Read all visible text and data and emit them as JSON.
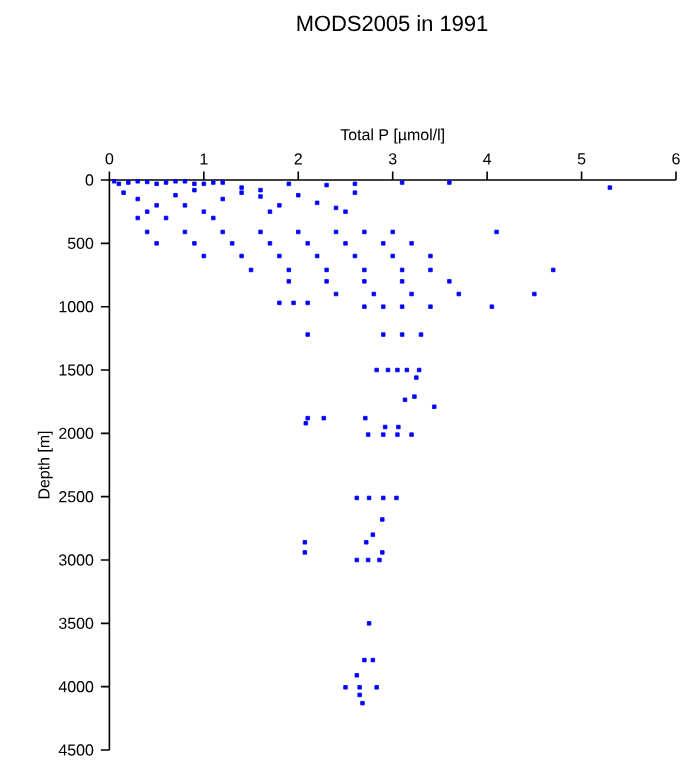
{
  "chart_data": {
    "type": "scatter",
    "title": "MODS2005 in 1991",
    "xlabel": "Total P [µmol/l]",
    "ylabel": "Depth [m]",
    "xlim": [
      0,
      6
    ],
    "xticks": [
      0,
      1,
      2,
      3,
      4,
      5,
      6
    ],
    "ylim": [
      4500,
      0
    ],
    "yticks": [
      0,
      500,
      1000,
      1500,
      2000,
      2500,
      3000,
      3500,
      4000,
      4500
    ],
    "grid": false,
    "marker": "square",
    "series": [
      {
        "color": "#0000ff",
        "x": [
          0.05,
          0.1,
          0.2,
          0.3,
          0.4,
          0.5,
          0.6,
          0.7,
          0.8,
          0.9,
          1.0,
          1.1,
          1.2,
          1.4,
          1.6,
          1.9,
          2.3,
          2.6,
          3.1,
          3.6,
          5.3,
          0.15,
          0.3,
          0.5,
          0.7,
          0.9,
          0.4,
          0.6,
          1.2,
          1.4,
          1.6,
          1.8,
          2.0,
          2.2,
          2.4,
          2.6,
          2.5,
          1.7,
          1.0,
          0.3,
          0.8,
          1.1,
          0.4,
          0.8,
          1.2,
          1.6,
          2.0,
          2.4,
          2.7,
          3.0,
          4.1,
          0.5,
          0.9,
          1.3,
          1.7,
          2.1,
          2.5,
          2.9,
          3.2,
          1.0,
          1.4,
          1.8,
          2.2,
          2.6,
          3.0,
          3.4,
          1.5,
          1.9,
          2.3,
          2.7,
          3.1,
          3.4,
          4.7,
          1.9,
          2.3,
          2.7,
          3.1,
          3.6,
          2.4,
          2.8,
          3.2,
          3.7,
          4.5,
          1.8,
          1.95,
          2.1,
          2.7,
          2.9,
          3.1,
          3.4,
          4.05,
          2.1,
          2.9,
          3.1,
          3.3,
          2.83,
          2.95,
          3.05,
          3.15,
          3.28,
          3.25,
          3.23,
          3.13,
          3.44,
          2.1,
          2.27,
          2.71,
          2.08,
          2.92,
          3.06,
          2.74,
          2.9,
          3.05,
          3.2,
          2.62,
          2.75,
          2.9,
          3.04,
          2.89,
          2.79,
          2.07,
          2.72,
          2.07,
          2.89,
          2.62,
          2.74,
          2.86,
          2.75,
          2.7,
          2.79,
          2.62,
          2.5,
          2.65,
          2.83,
          2.65,
          2.68
        ],
        "values": [
          10,
          30,
          20,
          10,
          15,
          30,
          20,
          10,
          10,
          30,
          30,
          20,
          20,
          60,
          80,
          30,
          40,
          30,
          20,
          20,
          60,
          100,
          150,
          200,
          120,
          80,
          250,
          300,
          150,
          100,
          130,
          200,
          120,
          180,
          220,
          100,
          250,
          250,
          250,
          300,
          200,
          300,
          410,
          410,
          410,
          410,
          410,
          410,
          410,
          410,
          410,
          500,
          500,
          500,
          500,
          500,
          500,
          500,
          500,
          600,
          600,
          600,
          600,
          600,
          600,
          600,
          710,
          710,
          710,
          710,
          710,
          710,
          710,
          800,
          800,
          800,
          800,
          800,
          900,
          900,
          900,
          900,
          900,
          970,
          970,
          970,
          1000,
          1000,
          1000,
          1000,
          1000,
          1220,
          1220,
          1220,
          1220,
          1500,
          1500,
          1500,
          1500,
          1500,
          1560,
          1710,
          1735,
          1790,
          1880,
          1880,
          1880,
          1920,
          1950,
          1950,
          2010,
          2010,
          2010,
          2010,
          2510,
          2510,
          2510,
          2510,
          2680,
          2800,
          2860,
          2860,
          2940,
          2940,
          3000,
          3000,
          3000,
          3500,
          3790,
          3790,
          3910,
          4005,
          4005,
          4005,
          4065,
          4130
        ]
      }
    ]
  }
}
